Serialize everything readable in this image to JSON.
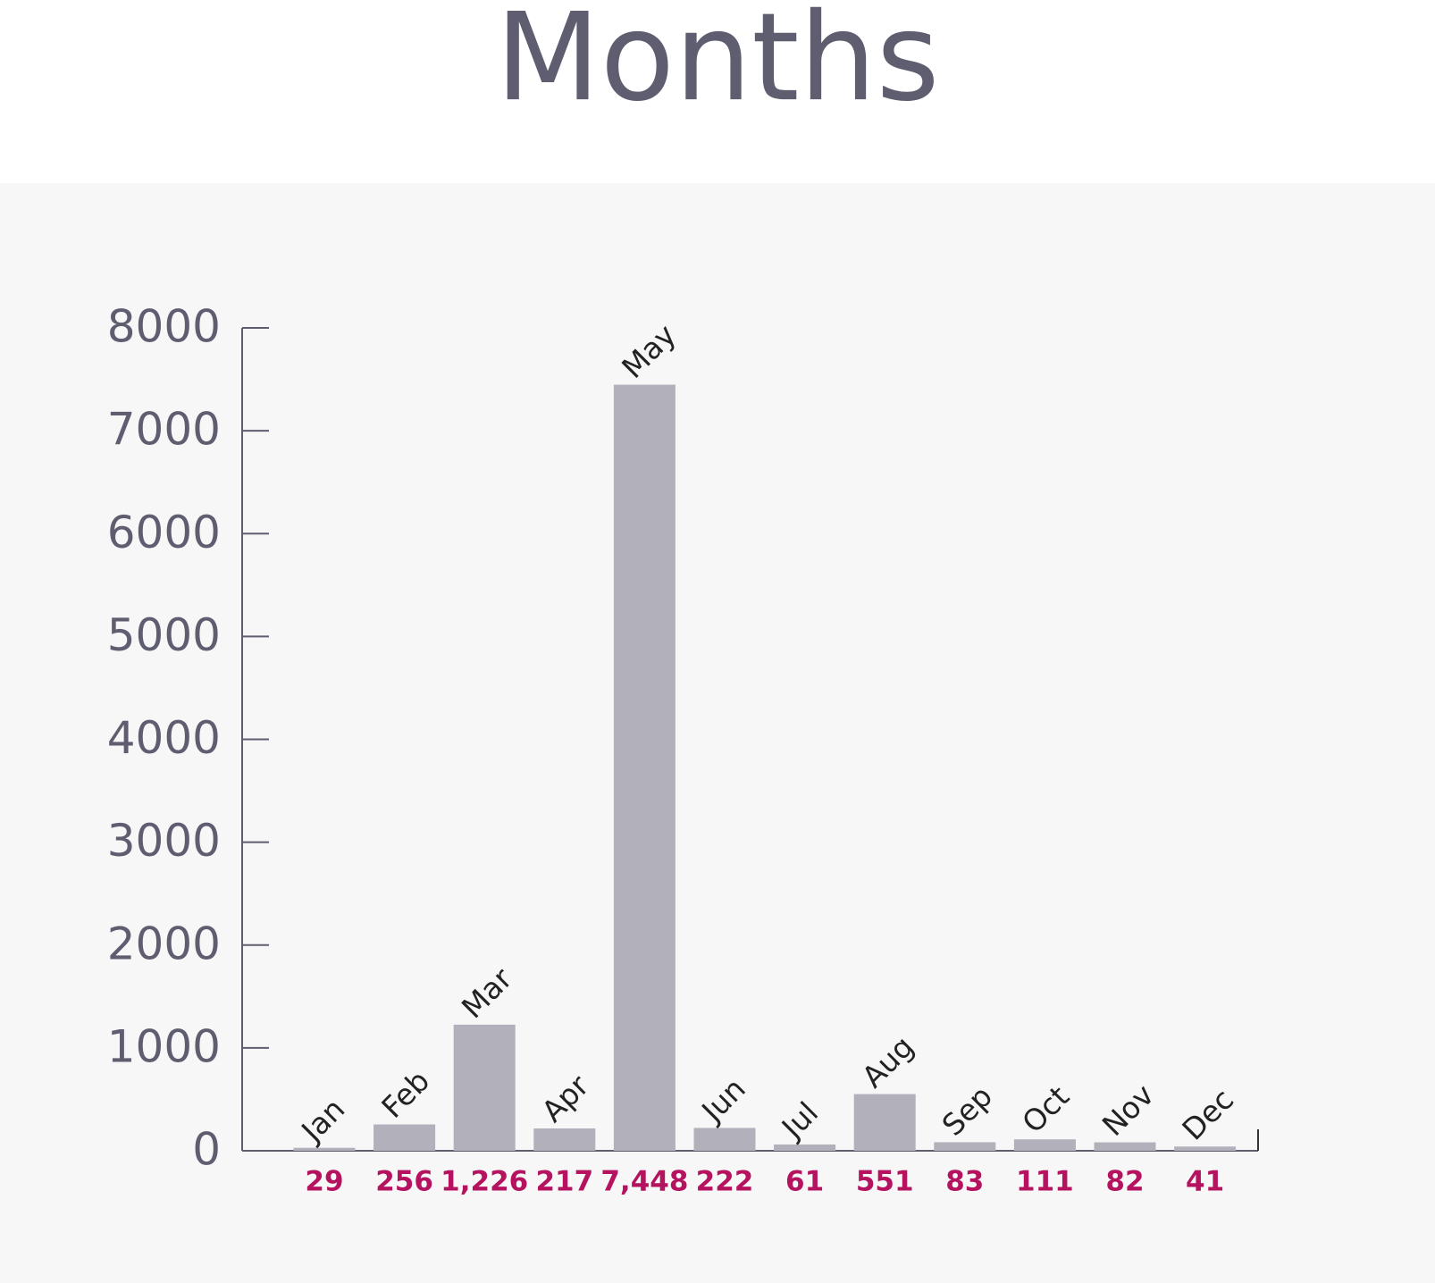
{
  "chart_data": {
    "type": "bar",
    "title": "Months",
    "categories": [
      "Jan",
      "Feb",
      "Mar",
      "Apr",
      "May",
      "Jun",
      "Jul",
      "Aug",
      "Sep",
      "Oct",
      "Nov",
      "Dec"
    ],
    "values": [
      29,
      256,
      1226,
      217,
      7448,
      222,
      61,
      551,
      83,
      111,
      82,
      41
    ],
    "value_labels": [
      "29",
      "256",
      "1,226",
      "217",
      "7,448",
      "222",
      "61",
      "551",
      "83",
      "111",
      "82",
      "41"
    ],
    "color": "#b1b0bb",
    "label_color": "#b5135f",
    "ylim": [
      0,
      8000
    ],
    "yticks": [
      0,
      1000,
      2000,
      3000,
      4000,
      5000,
      6000,
      7000,
      8000
    ],
    "grid": false
  }
}
